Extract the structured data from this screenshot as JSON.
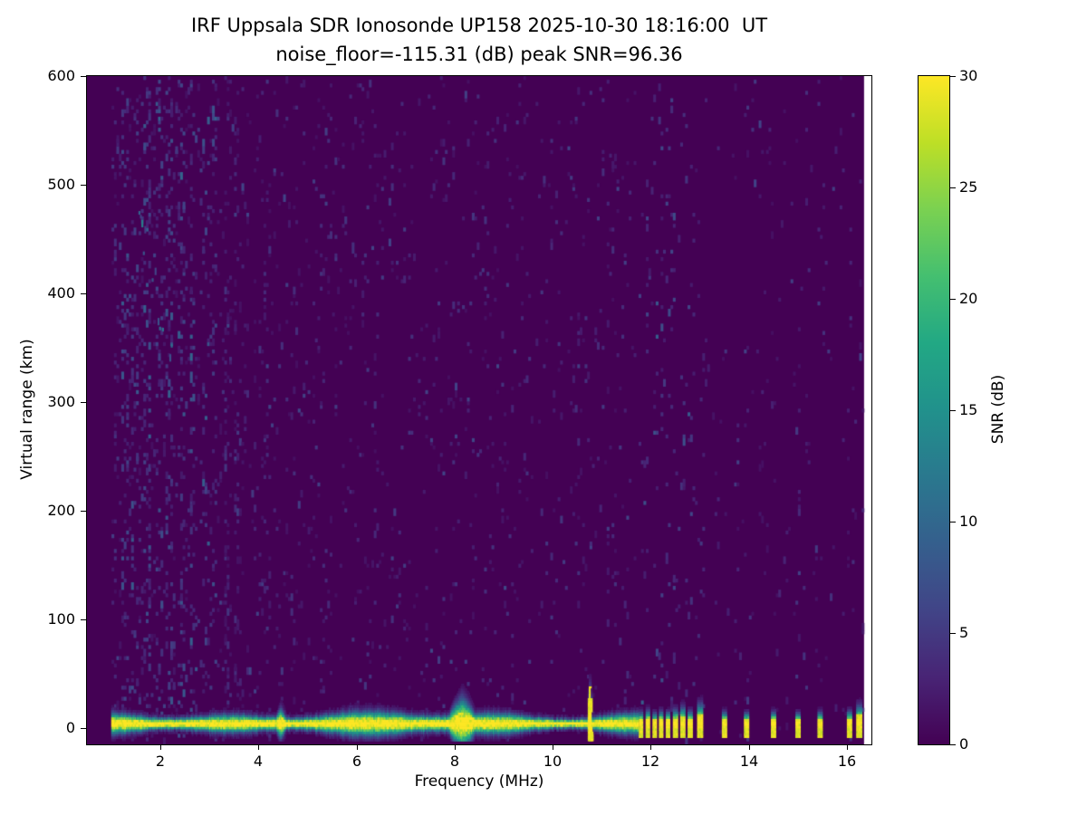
{
  "chart_data": {
    "type": "heatmap",
    "title": "IRF Uppsala SDR Ionosonde UP158 2025-10-30 18:16:00  UT",
    "subtitle": "noise_floor=-115.31 (dB) peak SNR=96.36",
    "xlabel": "Frequency (MHz)",
    "ylabel": "Virtual range (km)",
    "xlim": [
      0.5,
      16.5
    ],
    "ylim": [
      -15,
      600
    ],
    "xticks": [
      2,
      4,
      6,
      8,
      10,
      12,
      14,
      16
    ],
    "yticks": [
      0,
      100,
      200,
      300,
      400,
      500,
      600
    ],
    "grid": false,
    "colorbar": {
      "label": "SNR (dB)",
      "min": 0,
      "max": 30,
      "ticks": [
        0,
        5,
        10,
        15,
        20,
        25,
        30
      ],
      "colormap": "viridis",
      "stops": [
        {
          "pos": 0.0,
          "color": "#440154"
        },
        {
          "pos": 0.1,
          "color": "#482475"
        },
        {
          "pos": 0.2,
          "color": "#414487"
        },
        {
          "pos": 0.3,
          "color": "#355f8d"
        },
        {
          "pos": 0.4,
          "color": "#2a788e"
        },
        {
          "pos": 0.5,
          "color": "#21918c"
        },
        {
          "pos": 0.6,
          "color": "#22a884"
        },
        {
          "pos": 0.7,
          "color": "#44bf70"
        },
        {
          "pos": 0.8,
          "color": "#7ad151"
        },
        {
          "pos": 0.9,
          "color": "#bddf26"
        },
        {
          "pos": 1.0,
          "color": "#fde725"
        }
      ]
    },
    "render": {
      "background_db": 0,
      "data_fmin": 0.5,
      "data_fmax": 16.35,
      "noise": {
        "fmin": 1.0,
        "density_bands": [
          [
            2.6,
            0.085
          ],
          [
            4.2,
            0.05
          ],
          [
            7.0,
            0.032
          ],
          [
            11.7,
            0.026
          ],
          [
            16.5,
            0.014
          ]
        ]
      },
      "rfi_streaks": [
        {
          "f": 1.25,
          "boost": 2.2
        },
        {
          "f": 1.45,
          "boost": 1.8
        },
        {
          "f": 1.7,
          "boost": 2.0
        },
        {
          "f": 1.95,
          "boost": 1.7
        },
        {
          "f": 2.15,
          "boost": 2.1
        },
        {
          "f": 2.4,
          "boost": 1.7
        },
        {
          "f": 2.65,
          "boost": 2.4
        },
        {
          "f": 2.9,
          "boost": 1.8
        },
        {
          "f": 3.08,
          "boost": 3.0
        },
        {
          "f": 3.35,
          "boost": 1.6
        },
        {
          "f": 3.6,
          "boost": 1.5
        },
        {
          "f": 4.15,
          "boost": 1.5
        },
        {
          "f": 4.7,
          "boost": 1.4
        },
        {
          "f": 5.4,
          "boost": 1.4
        },
        {
          "f": 6.3,
          "boost": 1.3
        },
        {
          "f": 7.6,
          "boost": 1.3
        },
        {
          "f": 8.6,
          "boost": 1.4
        },
        {
          "f": 9.3,
          "boost": 1.4
        },
        {
          "f": 10.1,
          "boost": 1.3
        },
        {
          "f": 11.2,
          "boost": 1.4
        }
      ],
      "echo_trace": {
        "f0": 1.55,
        "f1": 2.25,
        "r0": 460,
        "r1": 330,
        "density": 0.45
      },
      "ground_echo": {
        "fmin": 1.0,
        "fmax": 11.72,
        "center_km": 3,
        "base_thickness": 10,
        "peak_db": 30
      },
      "enhancements": [
        {
          "f": 4.45,
          "hw": 0.12,
          "top": 20,
          "solid": false
        },
        {
          "f": 8.15,
          "hw": 0.3,
          "top": 34,
          "solid": false
        },
        {
          "f": 10.75,
          "hw": 0.05,
          "top": 48,
          "solid": true
        }
      ],
      "discrete_echoes": [
        {
          "f": 11.8,
          "hw": 0.04,
          "h": 14
        },
        {
          "f": 11.94,
          "hw": 0.04,
          "h": 16
        },
        {
          "f": 12.08,
          "hw": 0.04,
          "h": 13
        },
        {
          "f": 12.21,
          "hw": 0.04,
          "h": 15
        },
        {
          "f": 12.35,
          "hw": 0.04,
          "h": 14
        },
        {
          "f": 12.5,
          "hw": 0.045,
          "h": 17
        },
        {
          "f": 12.65,
          "hw": 0.045,
          "h": 20
        },
        {
          "f": 12.8,
          "hw": 0.045,
          "h": 15
        },
        {
          "f": 13.0,
          "hw": 0.05,
          "h": 24
        },
        {
          "f": 13.5,
          "hw": 0.045,
          "h": 14
        },
        {
          "f": 13.95,
          "hw": 0.045,
          "h": 13
        },
        {
          "f": 14.5,
          "hw": 0.045,
          "h": 14
        },
        {
          "f": 15.0,
          "hw": 0.045,
          "h": 13
        },
        {
          "f": 15.45,
          "hw": 0.045,
          "h": 14
        },
        {
          "f": 16.05,
          "hw": 0.045,
          "h": 15
        },
        {
          "f": 16.25,
          "hw": 0.055,
          "h": 22
        }
      ]
    }
  }
}
